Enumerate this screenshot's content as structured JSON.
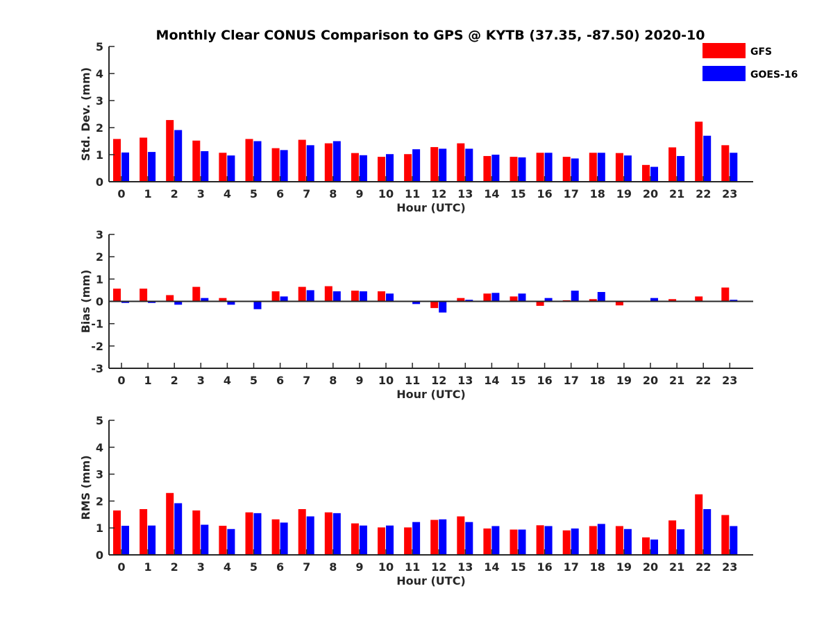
{
  "title": "Monthly Clear CONUS Comparison to GPS @ KYTB (37.35, -87.50) 2020-10",
  "legend": [
    {
      "name": "GFS",
      "color": "#ff0000"
    },
    {
      "name": "GOES-16",
      "color": "#0000ff"
    }
  ],
  "chart_data": [
    {
      "type": "bar",
      "categories": [
        "0",
        "1",
        "2",
        "3",
        "4",
        "5",
        "6",
        "7",
        "8",
        "9",
        "10",
        "11",
        "12",
        "13",
        "14",
        "15",
        "16",
        "17",
        "18",
        "19",
        "20",
        "21",
        "22",
        "23"
      ],
      "series": [
        {
          "name": "GFS",
          "color": "#ff0000",
          "values": [
            1.58,
            1.63,
            2.28,
            1.52,
            1.07,
            1.58,
            1.24,
            1.55,
            1.42,
            1.06,
            0.92,
            1.02,
            1.28,
            1.42,
            0.95,
            0.92,
            1.07,
            0.92,
            1.07,
            1.06,
            0.62,
            1.27,
            2.22,
            1.35
          ]
        },
        {
          "name": "GOES-16",
          "color": "#0000ff",
          "values": [
            1.08,
            1.1,
            1.91,
            1.13,
            0.97,
            1.5,
            1.17,
            1.35,
            1.5,
            0.98,
            1.02,
            1.2,
            1.22,
            1.22,
            1.0,
            0.9,
            1.07,
            0.86,
            1.07,
            0.97,
            0.55,
            0.95,
            1.7,
            1.07
          ]
        }
      ],
      "xlabel": "Hour (UTC)",
      "ylabel": "Std. Dev. (mm)",
      "ylim": [
        0,
        5
      ],
      "yticks": [
        "0",
        "1",
        "2",
        "3",
        "4",
        "5"
      ],
      "yticks_values": [
        0,
        1,
        2,
        3,
        4,
        5
      ]
    },
    {
      "type": "bar",
      "categories": [
        "0",
        "1",
        "2",
        "3",
        "4",
        "5",
        "6",
        "7",
        "8",
        "9",
        "10",
        "11",
        "12",
        "13",
        "14",
        "15",
        "16",
        "17",
        "18",
        "19",
        "20",
        "21",
        "22",
        "23"
      ],
      "series": [
        {
          "name": "GFS",
          "color": "#ff0000",
          "values": [
            0.57,
            0.57,
            0.28,
            0.65,
            0.15,
            0.0,
            0.45,
            0.65,
            0.68,
            0.48,
            0.45,
            0.0,
            -0.3,
            0.15,
            0.35,
            0.22,
            -0.2,
            0.05,
            0.1,
            -0.18,
            0.0,
            0.1,
            0.22,
            0.62
          ]
        },
        {
          "name": "GOES-16",
          "color": "#0000ff",
          "values": [
            -0.07,
            -0.07,
            -0.15,
            0.15,
            -0.15,
            -0.35,
            0.22,
            0.5,
            0.45,
            0.45,
            0.35,
            -0.12,
            -0.5,
            0.07,
            0.38,
            0.35,
            0.15,
            0.48,
            0.42,
            0.03,
            0.15,
            -0.03,
            -0.03,
            0.07
          ]
        }
      ],
      "xlabel": "Hour (UTC)",
      "ylabel": "Bias (mm)",
      "ylim": [
        -3,
        3
      ],
      "yticks": [
        "-3",
        "-2",
        "-1",
        "0",
        "1",
        "2",
        "3"
      ],
      "yticks_values": [
        -3,
        -2,
        -1,
        0,
        1,
        2,
        3
      ]
    },
    {
      "type": "bar",
      "categories": [
        "0",
        "1",
        "2",
        "3",
        "4",
        "5",
        "6",
        "7",
        "8",
        "9",
        "10",
        "11",
        "12",
        "13",
        "14",
        "15",
        "16",
        "17",
        "18",
        "19",
        "20",
        "21",
        "22",
        "23"
      ],
      "series": [
        {
          "name": "GFS",
          "color": "#ff0000",
          "values": [
            1.65,
            1.7,
            2.3,
            1.65,
            1.08,
            1.58,
            1.32,
            1.7,
            1.58,
            1.17,
            1.02,
            1.02,
            1.3,
            1.43,
            0.98,
            0.94,
            1.1,
            0.91,
            1.07,
            1.07,
            0.65,
            1.28,
            2.25,
            1.48
          ]
        },
        {
          "name": "GOES-16",
          "color": "#0000ff",
          "values": [
            1.08,
            1.09,
            1.92,
            1.12,
            0.96,
            1.55,
            1.2,
            1.43,
            1.55,
            1.09,
            1.09,
            1.22,
            1.32,
            1.22,
            1.07,
            0.94,
            1.07,
            0.98,
            1.15,
            0.96,
            0.57,
            0.95,
            1.7,
            1.07
          ]
        }
      ],
      "xlabel": "Hour (UTC)",
      "ylabel": "RMS (mm)",
      "ylim": [
        0,
        5
      ],
      "yticks": [
        "0",
        "1",
        "2",
        "3",
        "4",
        "5"
      ],
      "yticks_values": [
        0,
        1,
        2,
        3,
        4,
        5
      ]
    }
  ]
}
